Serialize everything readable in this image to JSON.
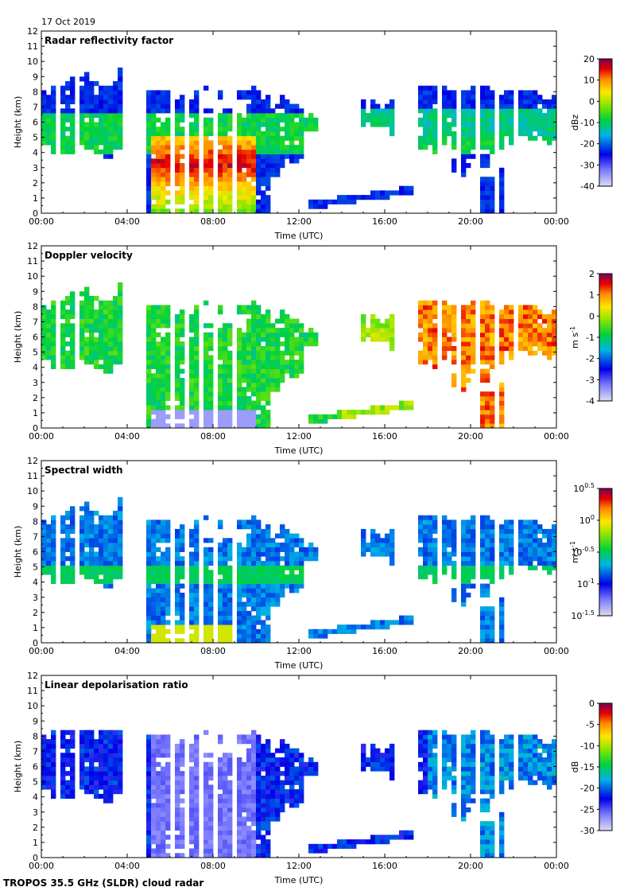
{
  "date": "17 Oct 2019",
  "footer": "TROPOS 35.5 GHz (SLDR) cloud radar",
  "chart_data": [
    {
      "type": "heatmap",
      "title": "Radar reflectivity factor",
      "xlabel": "Time (UTC)",
      "ylabel": "Height (km)",
      "xticks": [
        "00:00",
        "04:00",
        "08:00",
        "12:00",
        "16:00",
        "20:00",
        "00:00"
      ],
      "yticks": [
        "0",
        "1",
        "2",
        "3",
        "4",
        "5",
        "6",
        "7",
        "8",
        "9",
        "10",
        "11",
        "12"
      ],
      "xlim": [
        0,
        24
      ],
      "ylim": [
        0,
        12
      ],
      "colorbar": {
        "unit": "dBz",
        "ticks": [
          "20",
          "10",
          "0",
          "-10",
          "-20",
          "-30",
          "-40"
        ],
        "min": -40,
        "max": 20
      },
      "mode": "refl"
    },
    {
      "type": "heatmap",
      "title": "Doppler velocity",
      "xlabel": "Time (UTC)",
      "ylabel": "Height (km)",
      "xticks": [
        "00:00",
        "04:00",
        "08:00",
        "12:00",
        "16:00",
        "20:00",
        "00:00"
      ],
      "yticks": [
        "0",
        "1",
        "2",
        "3",
        "4",
        "5",
        "6",
        "7",
        "8",
        "9",
        "10",
        "11",
        "12"
      ],
      "xlim": [
        0,
        24
      ],
      "ylim": [
        0,
        12
      ],
      "colorbar": {
        "unit": "m s",
        "unit_sup": "-1",
        "ticks": [
          "2",
          "1",
          "0",
          "-1",
          "-2",
          "-3",
          "-4"
        ],
        "min": -4,
        "max": 2
      },
      "mode": "vel"
    },
    {
      "type": "heatmap",
      "title": "Spectral width",
      "xlabel": "Time (UTC)",
      "ylabel": "Height (km)",
      "xticks": [
        "00:00",
        "04:00",
        "08:00",
        "12:00",
        "16:00",
        "20:00",
        "00:00"
      ],
      "yticks": [
        "0",
        "1",
        "2",
        "3",
        "4",
        "5",
        "6",
        "7",
        "8",
        "9",
        "10",
        "11",
        "12"
      ],
      "xlim": [
        0,
        24
      ],
      "ylim": [
        0,
        12
      ],
      "colorbar": {
        "unit": "m s",
        "unit_sup": "-1",
        "ticks_exp": [
          "0.5",
          "0",
          "-0.5",
          "-1",
          "-1.5"
        ],
        "tick_base": "10",
        "min": -1.5,
        "max": 0.5
      },
      "mode": "width"
    },
    {
      "type": "heatmap",
      "title": "Linear depolarisation ratio",
      "xlabel": "Time (UTC)",
      "ylabel": "Height (km)",
      "xticks": [
        "00:00",
        "04:00",
        "08:00",
        "12:00",
        "16:00",
        "20:00",
        "00:00"
      ],
      "yticks": [
        "0",
        "1",
        "2",
        "3",
        "4",
        "5",
        "6",
        "7",
        "8",
        "9",
        "10",
        "11",
        "12"
      ],
      "xlim": [
        0,
        24
      ],
      "ylim": [
        0,
        12
      ],
      "colorbar": {
        "unit": "dB",
        "ticks": [
          "0",
          "-5",
          "-10",
          "-15",
          "-20",
          "-25",
          "-30"
        ],
        "min": -30,
        "max": 0
      },
      "mode": "ldr"
    }
  ]
}
